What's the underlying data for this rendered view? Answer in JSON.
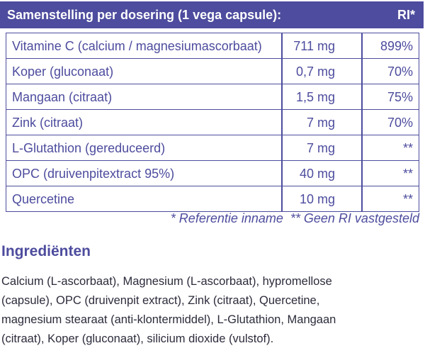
{
  "table": {
    "header": [
      "Samenstelling per dosering (1 vega capsule):",
      "RI*"
    ],
    "rows": [
      [
        "Vitamine C (calcium / magnesiumascorbaat)",
        "711 mg",
        "899%"
      ],
      [
        "Koper (gluconaat)",
        "0,7 mg",
        "70%"
      ],
      [
        "Mangaan (citraat)",
        "1,5 mg",
        "75%"
      ],
      [
        "Zink (citraat)",
        "7 mg",
        "70%"
      ],
      [
        "L-Glutathion (gereduceerd)",
        "7 mg",
        "**"
      ],
      [
        "OPC (druivenpitextract 95%)",
        "40 mg",
        "**"
      ],
      [
        "Quercetine",
        "10 mg",
        "**"
      ]
    ],
    "footnote": "* Referentie inname  ** Geen RI vastgesteld"
  },
  "ingredients": {
    "title": "Ingrediënten",
    "lines": [
      "Calcium (L-ascorbaat), Magnesium (L-ascorbaat), hypromellose",
      "(capsule), OPC (druivenpit extract), Zink (citraat), Quercetine,",
      "magnesium stearaat (anti-klontermiddel), L-Glutathion, Mangaan",
      "(citraat), Koper (gluconaat), silicium dioxide (vulstof)."
    ]
  }
}
